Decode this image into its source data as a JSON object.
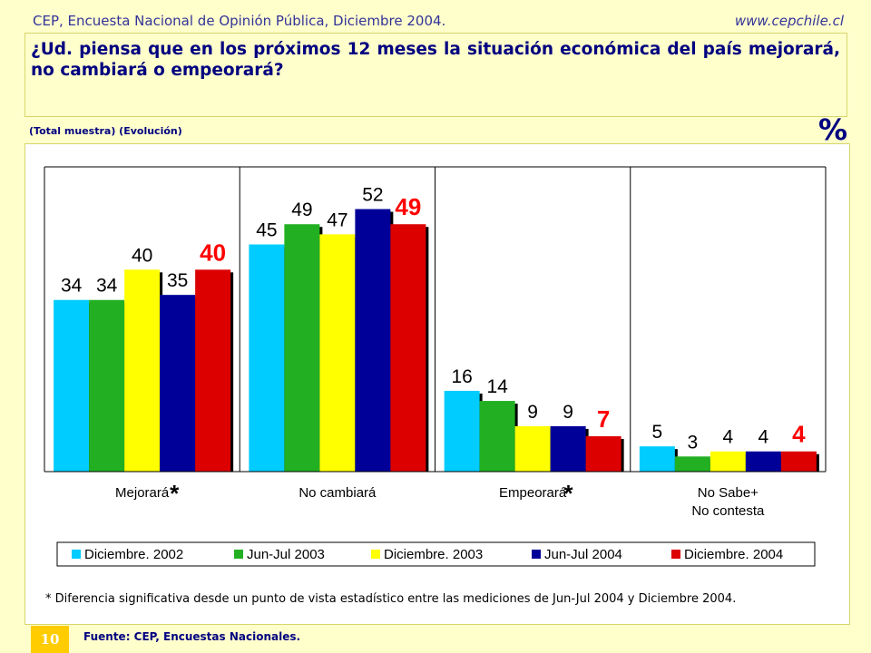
{
  "header": {
    "left": "CEP, Encuesta Nacional de Opinión Pública, Diciembre 2004.",
    "right": "www.cepchile.cl"
  },
  "question": "¿Ud. piensa que en los próximos 12 meses la situación económica del país mejorará, no cambiará o empeorará?",
  "subtitle": "(Total muestra) (Evolución)",
  "unit_symbol": "%",
  "footnote": "* Diferencia significativa desde un punto de vista estadístico entre las mediciones de Jun-Jul 2004 y Diciembre 2004.",
  "page_number": "10",
  "source": "Fuente: CEP, Encuestas Nacionales.",
  "colors": {
    "background": "#ffffcc",
    "title_text": "#000080",
    "highlight_label": "#ff0000",
    "page_badge": "#ffcc00"
  },
  "chart_data": {
    "type": "bar",
    "categories": [
      "Mejorará",
      "No cambiará",
      "Empeorará",
      "No Sabe+\nNo contesta"
    ],
    "significance_marks": [
      "*",
      "",
      "*",
      ""
    ],
    "series": [
      {
        "name": "Diciembre. 2002",
        "color": "#00ccff",
        "values": [
          34,
          45,
          16,
          5
        ]
      },
      {
        "name": "Jun-Jul 2003",
        "color": "#22b022",
        "values": [
          34,
          49,
          14,
          3
        ]
      },
      {
        "name": "Diciembre. 2003",
        "color": "#ffff00",
        "values": [
          40,
          47,
          9,
          4
        ]
      },
      {
        "name": "Jun-Jul 2004",
        "color": "#000099",
        "values": [
          35,
          52,
          9,
          4
        ]
      },
      {
        "name": "Diciembre. 2004",
        "color": "#dd0000",
        "values": [
          40,
          49,
          7,
          4
        ]
      }
    ],
    "ylim": [
      0,
      60
    ],
    "grid": false,
    "legend_position": "bottom",
    "highlight_series": "Diciembre. 2004"
  }
}
